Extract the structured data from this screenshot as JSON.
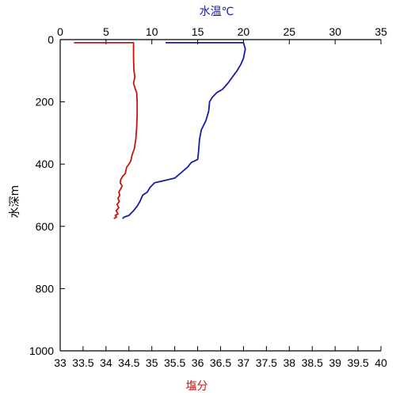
{
  "chart_data": {
    "type": "line",
    "title": "",
    "top_axis": {
      "label": "水温℃",
      "label_color": "#1a1aa8",
      "range": [
        0,
        35
      ],
      "ticks": [
        "0",
        "5",
        "10",
        "15",
        "20",
        "25",
        "30",
        "35"
      ]
    },
    "bottom_axis": {
      "label": "塩分",
      "label_color": "#cc1111",
      "range": [
        33,
        40
      ],
      "ticks": [
        "33",
        "33.5",
        "34",
        "34.5",
        "35",
        "35.5",
        "36",
        "36.5",
        "37",
        "37.5",
        "38",
        "38.5",
        "39",
        "39.5",
        "40"
      ]
    },
    "left_axis": {
      "label": "水深m",
      "range": [
        0,
        1000
      ],
      "inverted": true,
      "ticks": [
        "0",
        "200",
        "400",
        "600",
        "800",
        "1000"
      ]
    },
    "grid": false,
    "series": [
      {
        "color": "#cc1111",
        "x_axis": "bottom",
        "points": [
          [
            33.3,
            10
          ],
          [
            34.6,
            10
          ],
          [
            34.6,
            25
          ],
          [
            34.6,
            60
          ],
          [
            34.61,
            100
          ],
          [
            34.63,
            120
          ],
          [
            34.6,
            140
          ],
          [
            34.64,
            160
          ],
          [
            34.67,
            170
          ],
          [
            34.68,
            200
          ],
          [
            34.68,
            240
          ],
          [
            34.67,
            280
          ],
          [
            34.65,
            320
          ],
          [
            34.62,
            350
          ],
          [
            34.57,
            370
          ],
          [
            34.54,
            390
          ],
          [
            34.5,
            400
          ],
          [
            34.45,
            410
          ],
          [
            34.42,
            430
          ],
          [
            34.36,
            440
          ],
          [
            34.32,
            450
          ],
          [
            34.31,
            460
          ],
          [
            34.35,
            470
          ],
          [
            34.32,
            480
          ],
          [
            34.28,
            490
          ],
          [
            34.3,
            500
          ],
          [
            34.26,
            510
          ],
          [
            34.29,
            520
          ],
          [
            34.24,
            530
          ],
          [
            34.28,
            540
          ],
          [
            34.22,
            550
          ],
          [
            34.26,
            560
          ],
          [
            34.2,
            565
          ],
          [
            34.23,
            570
          ],
          [
            34.17,
            575
          ]
        ]
      },
      {
        "color": "#1a1aa8",
        "x_axis": "top",
        "points": [
          [
            11.5,
            10
          ],
          [
            20,
            10
          ],
          [
            20.2,
            30
          ],
          [
            20,
            60
          ],
          [
            19.7,
            80
          ],
          [
            19.3,
            100
          ],
          [
            18.8,
            120
          ],
          [
            18.3,
            140
          ],
          [
            17.7,
            160
          ],
          [
            17.1,
            170
          ],
          [
            16.6,
            185
          ],
          [
            16.3,
            200
          ],
          [
            16.2,
            230
          ],
          [
            15.9,
            260
          ],
          [
            15.4,
            290
          ],
          [
            15.2,
            320
          ],
          [
            15.1,
            360
          ],
          [
            15,
            385
          ],
          [
            14.3,
            395
          ],
          [
            13.9,
            410
          ],
          [
            13.1,
            430
          ],
          [
            12.5,
            445
          ],
          [
            11.5,
            452
          ],
          [
            10.3,
            460
          ],
          [
            9.8,
            475
          ],
          [
            9.5,
            490
          ],
          [
            9,
            500
          ],
          [
            8.7,
            520
          ],
          [
            8.4,
            535
          ],
          [
            8,
            550
          ],
          [
            7.5,
            565
          ],
          [
            7,
            570
          ],
          [
            6.8,
            575
          ]
        ]
      }
    ]
  }
}
